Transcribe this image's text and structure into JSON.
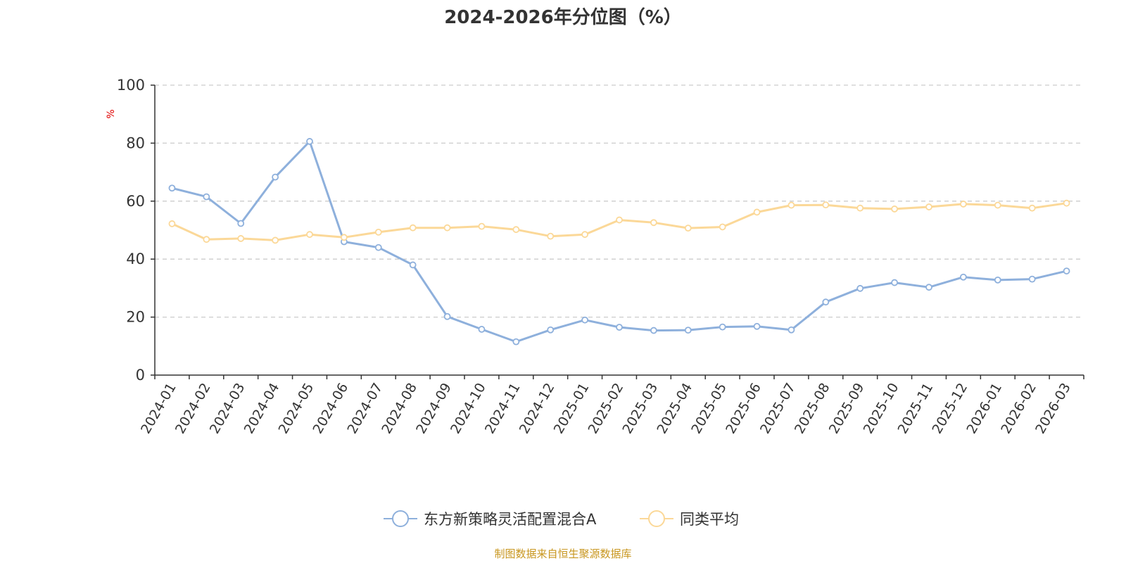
{
  "chart_data": {
    "type": "line",
    "title": "2024-2026年分位图（%）",
    "ylabel": "%",
    "ylim": [
      0,
      100
    ],
    "yticks": [
      0,
      20,
      40,
      60,
      80,
      100
    ],
    "grid": true,
    "legend_position": "bottom",
    "categories": [
      "2024-01",
      "2024-02",
      "2024-03",
      "2024-04",
      "2024-05",
      "2024-06",
      "2024-07",
      "2024-08",
      "2024-09",
      "2024-10",
      "2024-11",
      "2024-12",
      "2025-01",
      "2025-02",
      "2025-03",
      "2025-04",
      "2025-05",
      "2025-06",
      "2025-07",
      "2025-08",
      "2025-09",
      "2025-10",
      "2025-11",
      "2025-12",
      "2026-01",
      "2026-02",
      "2026-03"
    ],
    "series": [
      {
        "name": "东方新策略灵活配置混合A",
        "color": "#8eb0dc",
        "values": [
          64.5,
          61.5,
          52.3,
          68.3,
          80.6,
          46.0,
          44.0,
          38.0,
          20.2,
          15.8,
          11.5,
          15.6,
          19.0,
          16.5,
          15.4,
          15.5,
          16.6,
          16.8,
          15.6,
          25.2,
          29.9,
          31.9,
          30.3,
          33.8,
          32.8,
          33.1,
          35.9
        ]
      },
      {
        "name": "同类平均",
        "color": "#fbd898",
        "values": [
          52.2,
          46.8,
          47.1,
          46.5,
          48.5,
          47.5,
          49.3,
          50.8,
          50.8,
          51.3,
          50.2,
          47.9,
          48.5,
          53.5,
          52.6,
          50.7,
          51.1,
          56.2,
          58.6,
          58.7,
          57.6,
          57.3,
          58.0,
          59.0,
          58.6,
          57.6,
          59.3
        ]
      }
    ]
  },
  "source_note": "制图数据来自恒生聚源数据库"
}
